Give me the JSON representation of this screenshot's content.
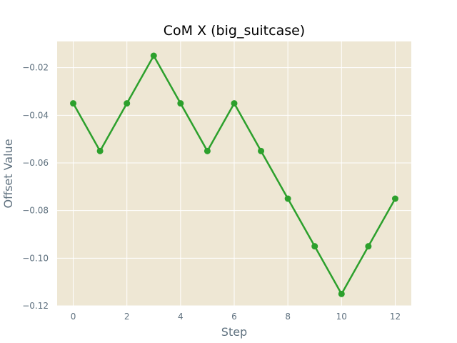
{
  "colors": {
    "plot_background": "#eee7d4",
    "grid": "#ffffff",
    "series": "#2ca02c",
    "axis_text": "#5f717f"
  },
  "chart_data": {
    "type": "line",
    "title": "CoM X (big_suitcase)",
    "xlabel": "Step",
    "ylabel": "Offset Value",
    "xlim": [
      -0.6,
      12.6
    ],
    "ylim": [
      -0.12,
      -0.009
    ],
    "xticks": [
      0,
      2,
      4,
      6,
      8,
      10,
      12
    ],
    "xtick_labels": [
      "0",
      "2",
      "4",
      "6",
      "8",
      "10",
      "12"
    ],
    "yticks": [
      -0.02,
      -0.04,
      -0.06,
      -0.08,
      -0.1,
      -0.12
    ],
    "ytick_labels": [
      "−0.02",
      "−0.04",
      "−0.06",
      "−0.08",
      "−0.10",
      "−0.12"
    ],
    "grid": true,
    "x": [
      0,
      1,
      2,
      3,
      4,
      5,
      6,
      7,
      8,
      9,
      10,
      11,
      12
    ],
    "series": [
      {
        "values": [
          -0.035,
          -0.055,
          -0.035,
          -0.015,
          -0.035,
          -0.055,
          -0.035,
          -0.055,
          -0.075,
          -0.095,
          -0.115,
          -0.095,
          -0.075
        ]
      }
    ]
  }
}
